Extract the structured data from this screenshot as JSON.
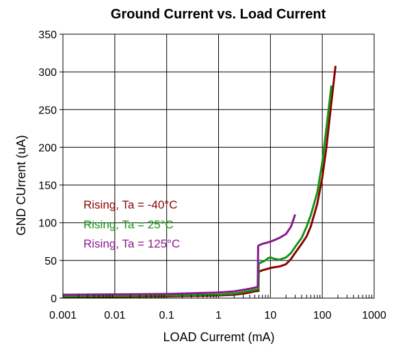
{
  "chart_data": {
    "type": "line",
    "title": "Ground Current vs. Load Current",
    "xlabel": "LOAD Curremt (mA)",
    "ylabel": "GND CUrrent (uA)",
    "x_scale": "log",
    "xlim": [
      0.001,
      1000
    ],
    "ylim": [
      0,
      350
    ],
    "x_tick_labels": [
      "0.001",
      "0.01",
      "0.1",
      "1",
      "10",
      "100",
      "1000"
    ],
    "y_tick_labels": [
      "0",
      "50",
      "100",
      "150",
      "200",
      "250",
      "300",
      "350"
    ],
    "grid": true,
    "legend_position": "middle-left",
    "series": [
      {
        "name": "Rising, Ta = -40°C",
        "color": "#8b0000",
        "x": [
          0.001,
          0.01,
          0.1,
          1,
          2,
          3,
          4,
          5,
          5.9,
          5.95,
          6,
          7,
          8,
          9,
          10,
          12,
          15,
          20,
          25,
          30,
          40,
          50,
          60,
          80,
          100,
          120,
          150,
          180
        ],
        "y": [
          1.5,
          1.8,
          2.3,
          3.5,
          4.5,
          6,
          7.5,
          9,
          9.5,
          34,
          35,
          37,
          38,
          39,
          40,
          41,
          42,
          45,
          52,
          60,
          72,
          82,
          95,
          125,
          160,
          200,
          260,
          308
        ]
      },
      {
        "name": "Rising, Ta = 25°C",
        "color": "#149414",
        "x": [
          0.001,
          0.01,
          0.1,
          1,
          2,
          3,
          4,
          5,
          5.9,
          5.95,
          6,
          7,
          8,
          9,
          10,
          12,
          15,
          20,
          25,
          30,
          40,
          50,
          60,
          80,
          100,
          120,
          150
        ],
        "y": [
          2.5,
          3,
          3.5,
          4.5,
          6,
          8,
          9.5,
          11,
          12,
          45,
          46,
          48,
          50,
          53,
          54,
          52,
          51,
          54,
          60,
          68,
          80,
          95,
          110,
          140,
          180,
          225,
          282
        ]
      },
      {
        "name": "Rising, Ta = 125°C",
        "color": "#8a1a8a",
        "x": [
          0.001,
          0.01,
          0.1,
          1,
          2,
          3,
          4,
          5,
          5.7,
          5.8,
          6,
          7,
          8,
          9,
          10,
          12,
          15,
          20,
          25,
          30
        ],
        "y": [
          4.5,
          5,
          5.5,
          7.5,
          9,
          11,
          12.5,
          14,
          15,
          69,
          70,
          72,
          73,
          74,
          75,
          77,
          80,
          85,
          95,
          111
        ]
      }
    ]
  }
}
